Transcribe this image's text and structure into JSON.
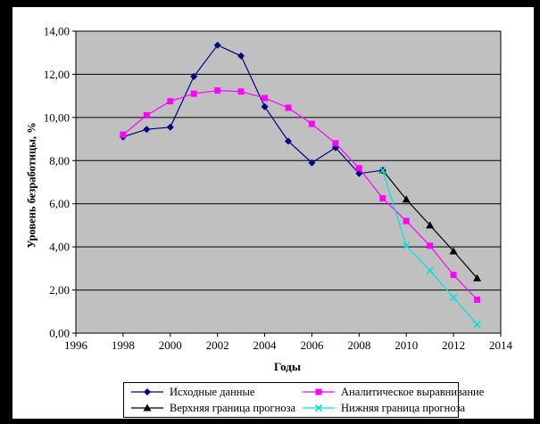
{
  "frame": {
    "border_color": "#000000",
    "page_bg": "#ffffff"
  },
  "chart_data": {
    "type": "line",
    "title": "",
    "xlabel": "Годы",
    "ylabel": "Уровень безработицы, %",
    "xlim": [
      1996,
      2014
    ],
    "ylim": [
      0,
      14
    ],
    "grid": true,
    "plot_bg": "#C0C0C0",
    "legend_position": "bottom",
    "x_ticks": [
      1996,
      1998,
      2000,
      2002,
      2004,
      2006,
      2008,
      2010,
      2012,
      2014
    ],
    "x_tick_labels": [
      "1996",
      "1998",
      "2000",
      "2002",
      "2004",
      "2006",
      "2008",
      "2010",
      "2012",
      "2014"
    ],
    "y_ticks": [
      0,
      2,
      4,
      6,
      8,
      10,
      12,
      14
    ],
    "y_tick_labels": [
      "0,00",
      "2,00",
      "4,00",
      "6,00",
      "8,00",
      "10,00",
      "12,00",
      "14,00"
    ],
    "series": [
      {
        "name": "Исходные данные",
        "color": "#000080",
        "marker": "diamond",
        "x": [
          1998,
          1999,
          2000,
          2001,
          2002,
          2003,
          2004,
          2005,
          2006,
          2007,
          2008,
          2009
        ],
        "y": [
          9.1,
          9.45,
          9.55,
          11.9,
          13.35,
          12.85,
          10.5,
          8.9,
          7.9,
          8.6,
          7.4,
          7.55
        ]
      },
      {
        "name": "Аналитическое выравнивание",
        "color": "#FF00FF",
        "marker": "square",
        "x": [
          1998,
          1999,
          2000,
          2001,
          2002,
          2003,
          2004,
          2005,
          2006,
          2007,
          2008,
          2009,
          2010,
          2011,
          2012,
          2013
        ],
        "y": [
          9.2,
          10.1,
          10.75,
          11.1,
          11.25,
          11.2,
          10.9,
          10.45,
          9.7,
          8.8,
          7.65,
          6.25,
          5.2,
          4.05,
          2.7,
          1.55
        ]
      },
      {
        "name": "Верхняя граница прогноза",
        "color": "#000000",
        "marker": "triangle",
        "x": [
          2009,
          2010,
          2011,
          2012,
          2013
        ],
        "y": [
          7.55,
          6.2,
          5.0,
          3.8,
          2.55
        ]
      },
      {
        "name": "Нижняя граница прогноза",
        "color": "#00E1E1",
        "marker": "x",
        "x": [
          2009,
          2010,
          2011,
          2012,
          2013
        ],
        "y": [
          7.55,
          4.05,
          2.9,
          1.65,
          0.4
        ]
      }
    ]
  }
}
